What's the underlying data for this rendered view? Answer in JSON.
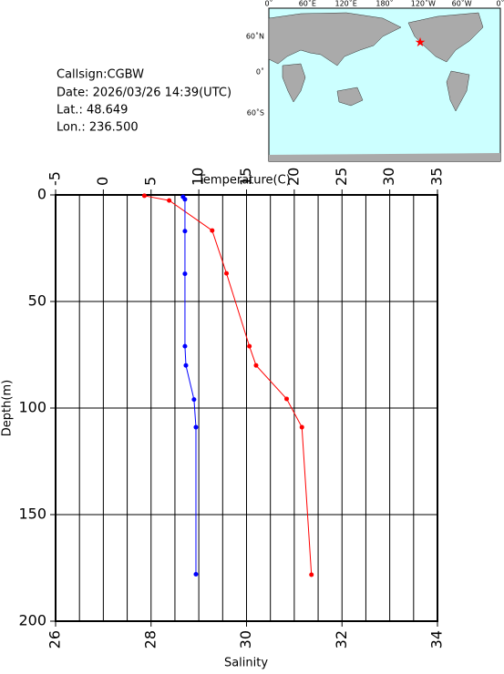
{
  "station": {
    "callsign": "Callsign:CGBW",
    "date": "Date:  2026/03/26 14:39(UTC)",
    "lat": "Lat.:  48.649",
    "lon": "Lon.:  236.500"
  },
  "map": {
    "lon_labels": [
      "0˚",
      "60˚E",
      "120˚E",
      "180˚",
      "120˚W",
      "60˚W",
      "0˚"
    ],
    "lat_labels": [
      "60˚N",
      "0˚",
      "60˚S"
    ]
  },
  "chart_data": {
    "type": "profile",
    "xlabel": "Temperature(C)",
    "x2label": "Salinity",
    "ylabel": "Depth(m)",
    "xlim": [
      -5,
      35
    ],
    "xticks": [
      -5,
      0,
      5,
      10,
      15,
      20,
      25,
      30,
      35
    ],
    "x2lim": [
      26,
      34
    ],
    "x2ticks": [
      26,
      28,
      30,
      32,
      34
    ],
    "x2grid": [
      26.5,
      27,
      27.5,
      28,
      28.5,
      29,
      29.5,
      30,
      30.5,
      31,
      31.5,
      32,
      32.5,
      33,
      33.5
    ],
    "ylim": [
      0,
      200
    ],
    "yticks": [
      0,
      50,
      100,
      150,
      200
    ],
    "series": [
      {
        "color": "#ff0000",
        "xaxis": "x",
        "x": [
          4.3,
          6.9,
          11.4,
          12.9,
          15.3,
          16.0,
          19.2,
          20.8,
          21.8
        ],
        "values": [
          0.4,
          2.6,
          16.7,
          36.8,
          71,
          80,
          95.7,
          109,
          178.2
        ]
      },
      {
        "color": "#0000ff",
        "xaxis": "x2",
        "x": [
          28.67,
          28.71,
          28.71,
          28.71,
          28.71,
          28.73,
          28.9,
          28.94,
          28.94
        ],
        "values": [
          0.9,
          2.1,
          17,
          37,
          71,
          80,
          96,
          109,
          178
        ]
      }
    ]
  }
}
